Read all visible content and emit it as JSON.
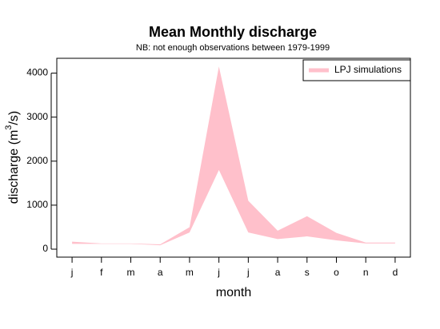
{
  "chart_data": {
    "type": "band",
    "title": "Mean Monthly discharge",
    "subtitle": "NB: not enough observations between 1979-1999",
    "xlabel": "month",
    "ylabel_parts": [
      "discharge (m",
      "3",
      "/s)"
    ],
    "categories": [
      "j",
      "f",
      "m",
      "a",
      "m",
      "j",
      "j",
      "a",
      "s",
      "o",
      "n",
      "d"
    ],
    "series": [
      {
        "name": "LPJ simulations",
        "color": "#ffc0cb",
        "upper": [
          170,
          130,
          130,
          110,
          500,
          4150,
          1100,
          420,
          750,
          370,
          150,
          150
        ],
        "lower": [
          120,
          120,
          120,
          90,
          380,
          1800,
          380,
          230,
          290,
          200,
          130,
          130
        ]
      }
    ],
    "ylim": [
      -181,
      4337
    ],
    "yticks": [
      0,
      1000,
      2000,
      3000,
      4000
    ],
    "legend": "top-right"
  }
}
